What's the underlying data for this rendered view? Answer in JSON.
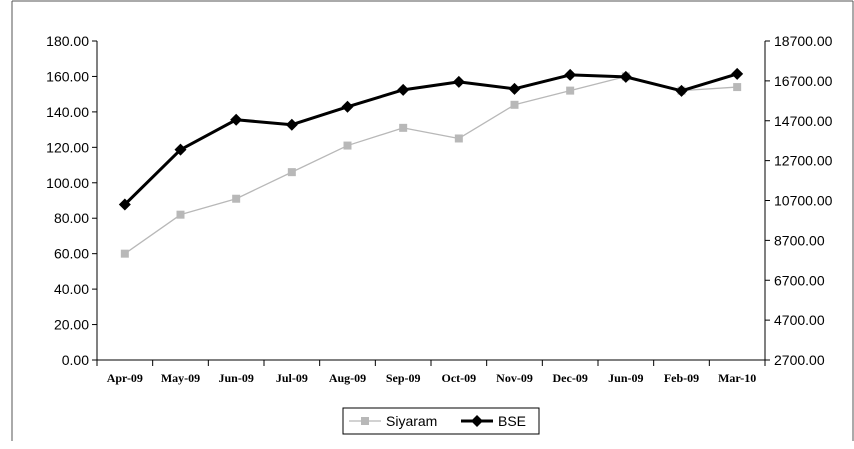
{
  "chart_data": {
    "type": "line",
    "categories": [
      "Apr-09",
      "May-09",
      "Jun-09",
      "Jul-09",
      "Aug-09",
      "Sep-09",
      "Oct-09",
      "Nov-09",
      "Dec-09",
      "Jun-09",
      "Feb-09",
      "Mar-10"
    ],
    "y_left": {
      "ticks": [
        "0.00",
        "20.00",
        "40.00",
        "60.00",
        "80.00",
        "100.00",
        "120.00",
        "140.00",
        "160.00",
        "180.00"
      ],
      "ylim": [
        0,
        180
      ]
    },
    "y_right": {
      "ticks": [
        "2700.00",
        "4700.00",
        "6700.00",
        "8700.00",
        "10700.00",
        "12700.00",
        "14700.00",
        "16700.00",
        "18700.00"
      ],
      "ylim": [
        2700,
        18700
      ]
    },
    "series": [
      {
        "name": "Siyaram",
        "axis": "left",
        "color": "#b8b8b8",
        "marker": "square",
        "values": [
          60,
          82,
          91,
          106,
          121,
          131,
          125,
          144,
          152,
          160,
          152,
          154
        ]
      },
      {
        "name": "BSE",
        "axis": "right",
        "color": "#000000",
        "marker": "diamond",
        "values": [
          10500,
          13250,
          14750,
          14500,
          15400,
          16250,
          16650,
          16300,
          17000,
          16900,
          16200,
          17050
        ]
      }
    ],
    "grid": false,
    "legend": "bottom"
  }
}
